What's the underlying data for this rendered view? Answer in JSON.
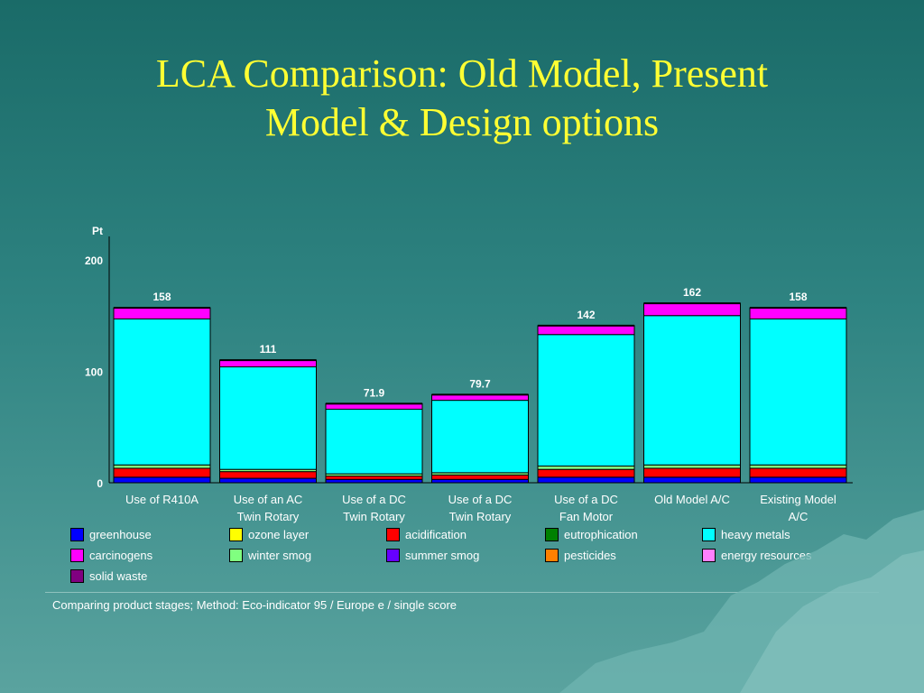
{
  "title": {
    "line1": "LCA Comparison: Old Model, Present",
    "line2": "Model & Design options"
  },
  "chart_data": {
    "type": "bar",
    "stacked": true,
    "yunit": "Pt",
    "ylim": [
      0,
      220
    ],
    "yticks": [
      0,
      100,
      200
    ],
    "categories": [
      [
        "Use of R410A"
      ],
      [
        "Use of an AC",
        "Twin Rotary"
      ],
      [
        "Use of a DC",
        "Twin Rotary"
      ],
      [
        "Use of a DC",
        "Twin Rotary"
      ],
      [
        "Use of a DC",
        "Fan Motor"
      ],
      [
        "Old Model A/C"
      ],
      [
        "Existing Model",
        "A/C"
      ]
    ],
    "totals_labels": [
      "158",
      "111",
      "71.9",
      "79.7",
      "142",
      "162",
      "158"
    ],
    "series": [
      {
        "name": "greenhouse",
        "color": "#0000ff",
        "values": [
          5,
          4,
          3,
          3,
          5,
          5,
          5
        ]
      },
      {
        "name": "acidification",
        "color": "#ff0000",
        "values": [
          8,
          6,
          3,
          4,
          7,
          8,
          8
        ]
      },
      {
        "name": "winter smog",
        "color": "#80ff80",
        "values": [
          3,
          2,
          2,
          2,
          3,
          3,
          3
        ]
      },
      {
        "name": "heavy metals",
        "color": "#00ffff",
        "values": [
          131,
          92,
          58,
          65,
          118,
          134,
          131
        ]
      },
      {
        "name": "carcinogens",
        "color": "#ff00ff",
        "values": [
          10,
          6,
          5,
          5,
          8,
          11,
          10
        ]
      }
    ]
  },
  "legend": [
    {
      "label": "greenhouse",
      "color": "#0000ff"
    },
    {
      "label": "ozone layer",
      "color": "#ffff00"
    },
    {
      "label": "acidification",
      "color": "#ff0000"
    },
    {
      "label": "eutrophication",
      "color": "#008000"
    },
    {
      "label": "heavy metals",
      "color": "#00ffff"
    },
    {
      "label": "carcinogens",
      "color": "#ff00ff"
    },
    {
      "label": "winter smog",
      "color": "#80ff80"
    },
    {
      "label": "summer smog",
      "color": "#6600ff"
    },
    {
      "label": "pesticides",
      "color": "#ff8000"
    },
    {
      "label": "energy resources",
      "color": "#ff80ff"
    },
    {
      "label": "solid waste",
      "color": "#800080"
    }
  ],
  "footnote": "Comparing product stages;  Method: Eco-indicator 95 /  Europe e / single score"
}
